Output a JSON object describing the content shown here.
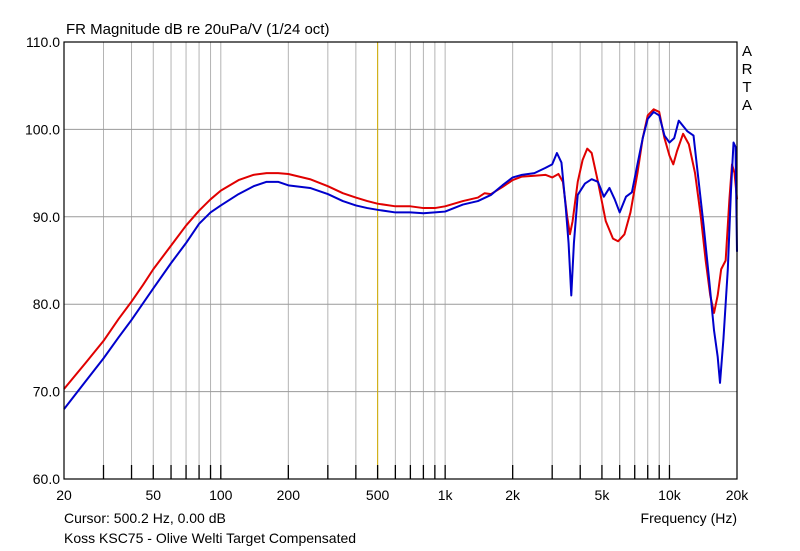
{
  "chart_data": {
    "type": "line",
    "title": "FR Magnitude dB re 20uPa/V (1/24 oct)",
    "xlabel": "Frequency (Hz)",
    "ylabel": "",
    "x_scale": "log",
    "xlim": [
      20,
      20000
    ],
    "ylim": [
      60,
      110
    ],
    "y_ticks": [
      "110.0",
      "100.0",
      "90.0",
      "80.0",
      "70.0",
      "60.0"
    ],
    "x_ticks": [
      {
        "value": 20,
        "label": "20"
      },
      {
        "value": 50,
        "label": "50"
      },
      {
        "value": 100,
        "label": "100"
      },
      {
        "value": 200,
        "label": "200"
      },
      {
        "value": 500,
        "label": "500"
      },
      {
        "value": 1000,
        "label": "1k"
      },
      {
        "value": 2000,
        "label": "2k"
      },
      {
        "value": 5000,
        "label": "5k"
      },
      {
        "value": 10000,
        "label": "10k"
      },
      {
        "value": 20000,
        "label": "20k"
      }
    ],
    "grid": true,
    "cursor_frequency": 500.2,
    "series": [
      {
        "color": "#e00000",
        "points": [
          [
            20,
            70.3
          ],
          [
            25,
            73.3
          ],
          [
            30,
            75.8
          ],
          [
            35,
            78.3
          ],
          [
            40,
            80.3
          ],
          [
            45,
            82.2
          ],
          [
            50,
            84.0
          ],
          [
            60,
            86.7
          ],
          [
            70,
            89.0
          ],
          [
            80,
            90.7
          ],
          [
            90,
            92.0
          ],
          [
            100,
            93.0
          ],
          [
            120,
            94.2
          ],
          [
            140,
            94.8
          ],
          [
            160,
            95.0
          ],
          [
            180,
            95.0
          ],
          [
            200,
            94.9
          ],
          [
            250,
            94.3
          ],
          [
            300,
            93.5
          ],
          [
            350,
            92.7
          ],
          [
            400,
            92.2
          ],
          [
            450,
            91.8
          ],
          [
            500,
            91.5
          ],
          [
            600,
            91.2
          ],
          [
            700,
            91.2
          ],
          [
            800,
            91.0
          ],
          [
            900,
            91.0
          ],
          [
            1000,
            91.2
          ],
          [
            1200,
            91.8
          ],
          [
            1400,
            92.2
          ],
          [
            1500,
            92.7
          ],
          [
            1600,
            92.6
          ],
          [
            1800,
            93.4
          ],
          [
            2000,
            94.2
          ],
          [
            2200,
            94.6
          ],
          [
            2500,
            94.7
          ],
          [
            2800,
            94.8
          ],
          [
            3000,
            94.5
          ],
          [
            3200,
            94.9
          ],
          [
            3350,
            94.0
          ],
          [
            3500,
            90.0
          ],
          [
            3600,
            88.0
          ],
          [
            3700,
            89.5
          ],
          [
            3900,
            94.0
          ],
          [
            4100,
            96.5
          ],
          [
            4300,
            97.8
          ],
          [
            4500,
            97.3
          ],
          [
            4800,
            94.0
          ],
          [
            5200,
            89.5
          ],
          [
            5600,
            87.5
          ],
          [
            5900,
            87.2
          ],
          [
            6300,
            88.0
          ],
          [
            6700,
            90.5
          ],
          [
            7200,
            95.0
          ],
          [
            7600,
            99.0
          ],
          [
            8000,
            101.6
          ],
          [
            8500,
            102.3
          ],
          [
            9000,
            102.0
          ],
          [
            9500,
            99.0
          ],
          [
            10000,
            97.0
          ],
          [
            10400,
            96.0
          ],
          [
            10800,
            97.5
          ],
          [
            11500,
            99.5
          ],
          [
            12200,
            98.3
          ],
          [
            13000,
            95.0
          ],
          [
            13800,
            90.0
          ],
          [
            14500,
            85.0
          ],
          [
            15200,
            81.0
          ],
          [
            15800,
            79.0
          ],
          [
            16400,
            81.0
          ],
          [
            17000,
            84.0
          ],
          [
            17800,
            85.0
          ],
          [
            18500,
            92.0
          ],
          [
            19000,
            96.0
          ],
          [
            19500,
            95.0
          ],
          [
            20000,
            92.0
          ]
        ]
      },
      {
        "color": "#0000cc",
        "points": [
          [
            20,
            68.0
          ],
          [
            25,
            71.2
          ],
          [
            30,
            73.8
          ],
          [
            35,
            76.2
          ],
          [
            40,
            78.2
          ],
          [
            45,
            80.1
          ],
          [
            50,
            81.8
          ],
          [
            60,
            84.7
          ],
          [
            70,
            87.0
          ],
          [
            80,
            89.2
          ],
          [
            90,
            90.5
          ],
          [
            100,
            91.3
          ],
          [
            120,
            92.6
          ],
          [
            140,
            93.5
          ],
          [
            160,
            94.0
          ],
          [
            180,
            94.0
          ],
          [
            200,
            93.6
          ],
          [
            250,
            93.3
          ],
          [
            300,
            92.6
          ],
          [
            350,
            91.8
          ],
          [
            400,
            91.3
          ],
          [
            450,
            91.0
          ],
          [
            500,
            90.8
          ],
          [
            600,
            90.5
          ],
          [
            700,
            90.5
          ],
          [
            800,
            90.4
          ],
          [
            900,
            90.5
          ],
          [
            1000,
            90.6
          ],
          [
            1200,
            91.4
          ],
          [
            1400,
            91.8
          ],
          [
            1600,
            92.5
          ],
          [
            1800,
            93.6
          ],
          [
            2000,
            94.5
          ],
          [
            2200,
            94.8
          ],
          [
            2500,
            95.0
          ],
          [
            2800,
            95.6
          ],
          [
            3000,
            96.0
          ],
          [
            3150,
            97.3
          ],
          [
            3300,
            96.2
          ],
          [
            3450,
            91.0
          ],
          [
            3550,
            87.0
          ],
          [
            3650,
            81.0
          ],
          [
            3750,
            87.0
          ],
          [
            3900,
            92.5
          ],
          [
            4200,
            93.8
          ],
          [
            4500,
            94.3
          ],
          [
            4800,
            94.0
          ],
          [
            5100,
            92.3
          ],
          [
            5400,
            93.3
          ],
          [
            5700,
            92.0
          ],
          [
            6000,
            90.5
          ],
          [
            6400,
            92.3
          ],
          [
            6800,
            92.8
          ],
          [
            7200,
            96.0
          ],
          [
            7600,
            99.0
          ],
          [
            8000,
            101.2
          ],
          [
            8500,
            102.0
          ],
          [
            9000,
            101.6
          ],
          [
            9500,
            99.3
          ],
          [
            10000,
            98.5
          ],
          [
            10500,
            99.0
          ],
          [
            11000,
            101.0
          ],
          [
            12000,
            99.8
          ],
          [
            12800,
            99.3
          ],
          [
            13500,
            94.0
          ],
          [
            14200,
            89.0
          ],
          [
            15000,
            83.0
          ],
          [
            15800,
            77.0
          ],
          [
            16400,
            74.0
          ],
          [
            16800,
            71.0
          ],
          [
            17400,
            76.0
          ],
          [
            18200,
            84.0
          ],
          [
            18800,
            93.0
          ],
          [
            19300,
            98.5
          ],
          [
            19700,
            98.0
          ],
          [
            20000,
            86.0
          ]
        ]
      }
    ]
  },
  "brand_letters": [
    "A",
    "R",
    "T",
    "A"
  ],
  "cursor_text": "Cursor: 500.2 Hz, 0.00 dB",
  "caption": "Koss KSC75 - Olive Welti Target Compensated"
}
